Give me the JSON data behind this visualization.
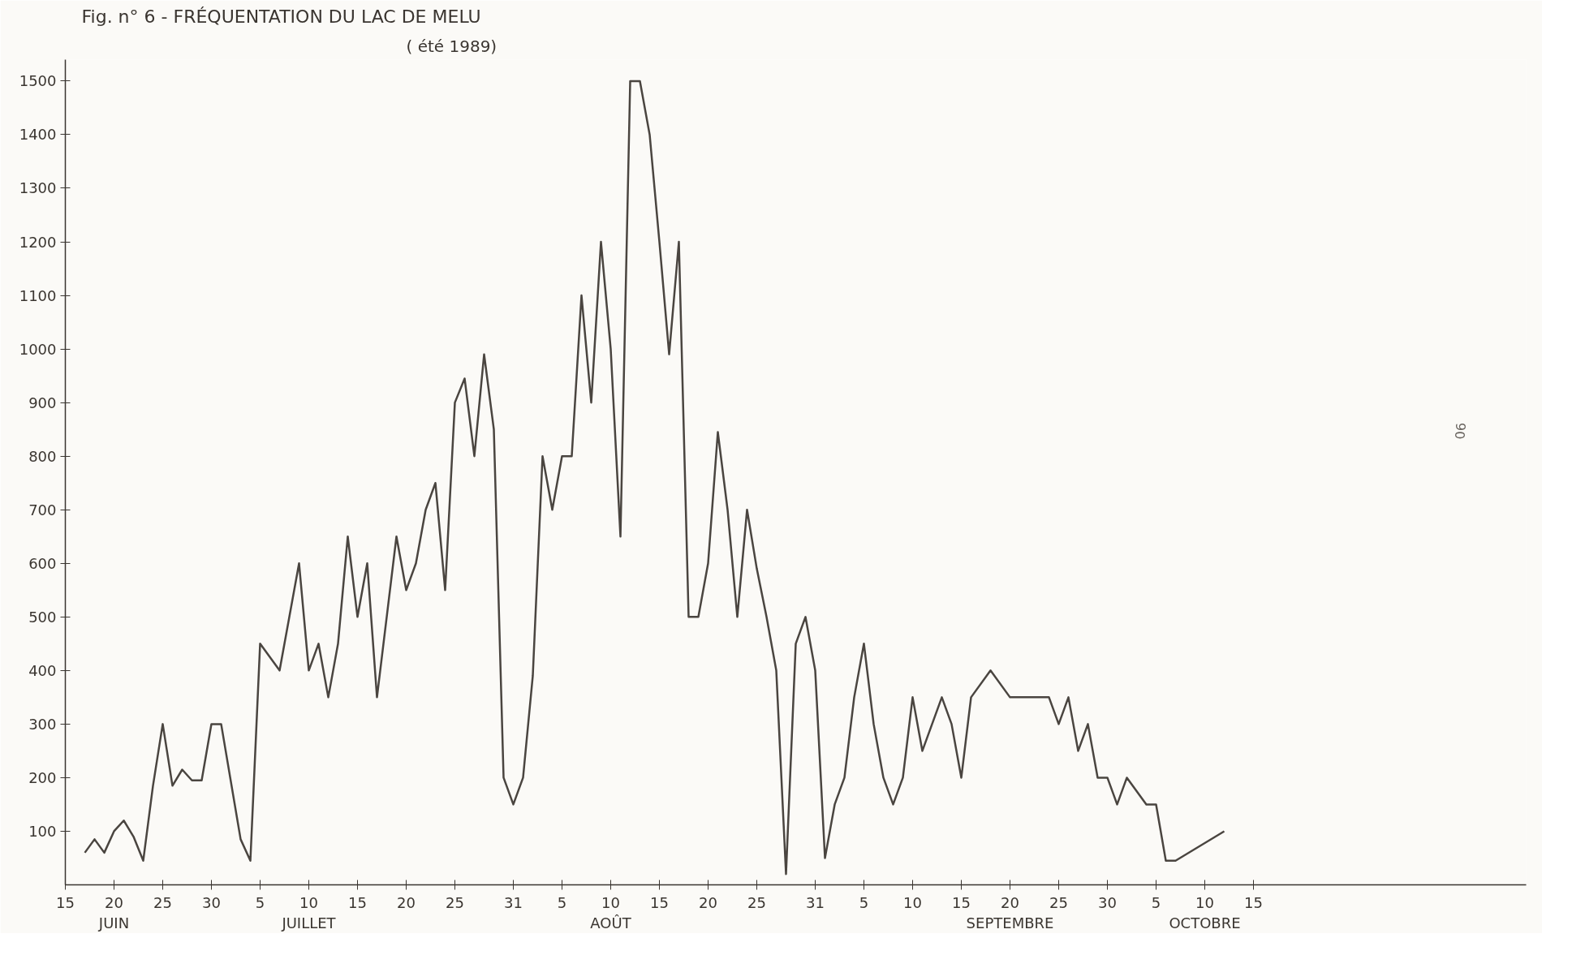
{
  "chart_data": {
    "type": "line",
    "title": "Fig. n° 6 - FRÉQUENTATION DU LAC DE MELU",
    "subtitle": "( été 1989)",
    "x": [
      "1989-06-17",
      "1989-06-18",
      "1989-06-19",
      "1989-06-20",
      "1989-06-21",
      "1989-06-22",
      "1989-06-23",
      "1989-06-24",
      "1989-06-25",
      "1989-06-26",
      "1989-06-27",
      "1989-06-28",
      "1989-06-29",
      "1989-06-30",
      "1989-07-01",
      "1989-07-03",
      "1989-07-04",
      "1989-07-05",
      "1989-07-07",
      "1989-07-08",
      "1989-07-09",
      "1989-07-10",
      "1989-07-11",
      "1989-07-12",
      "1989-07-13",
      "1989-07-14",
      "1989-07-15",
      "1989-07-16",
      "1989-07-17",
      "1989-07-18",
      "1989-07-19",
      "1989-07-20",
      "1989-07-21",
      "1989-07-22",
      "1989-07-23",
      "1989-07-24",
      "1989-07-25",
      "1989-07-26",
      "1989-07-27",
      "1989-07-28",
      "1989-07-29",
      "1989-07-30",
      "1989-07-31",
      "1989-08-01",
      "1989-08-02",
      "1989-08-03",
      "1989-08-04",
      "1989-08-05",
      "1989-08-06",
      "1989-08-07",
      "1989-08-08",
      "1989-08-09",
      "1989-08-10",
      "1989-08-11",
      "1989-08-12",
      "1989-08-13",
      "1989-08-14",
      "1989-08-15",
      "1989-08-16",
      "1989-08-17",
      "1989-08-18",
      "1989-08-19",
      "1989-08-20",
      "1989-08-21",
      "1989-08-22",
      "1989-08-23",
      "1989-08-24",
      "1989-08-25",
      "1989-08-26",
      "1989-08-27",
      "1989-08-28",
      "1989-08-29",
      "1989-08-30",
      "1989-08-31",
      "1989-09-01",
      "1989-09-02",
      "1989-09-03",
      "1989-09-04",
      "1989-09-05",
      "1989-09-06",
      "1989-09-07",
      "1989-09-08",
      "1989-09-09",
      "1989-09-10",
      "1989-09-11",
      "1989-09-13",
      "1989-09-14",
      "1989-09-15",
      "1989-09-16",
      "1989-09-18",
      "1989-09-20",
      "1989-09-24",
      "1989-09-25",
      "1989-09-26",
      "1989-09-27",
      "1989-09-28",
      "1989-09-29",
      "1989-09-30",
      "1989-10-01",
      "1989-10-02",
      "1989-10-04",
      "1989-10-05",
      "1989-10-06",
      "1989-10-07",
      "1989-10-12"
    ],
    "series": [
      {
        "color": "#4a4540",
        "values": [
          60,
          85,
          60,
          100,
          120,
          90,
          45,
          185,
          300,
          185,
          215,
          195,
          195,
          300,
          300,
          85,
          45,
          450,
          400,
          500,
          600,
          400,
          450,
          350,
          450,
          650,
          500,
          600,
          350,
          500,
          650,
          550,
          600,
          700,
          750,
          550,
          900,
          945,
          800,
          990,
          850,
          200,
          150,
          200,
          390,
          800,
          700,
          800,
          800,
          1100,
          900,
          1200,
          1000,
          650,
          1500,
          1500,
          1400,
          1200,
          990,
          1200,
          500,
          500,
          600,
          845,
          700,
          500,
          700,
          590,
          500,
          400,
          20,
          450,
          500,
          400,
          50,
          150,
          200,
          350,
          450,
          300,
          200,
          150,
          200,
          350,
          250,
          350,
          300,
          200,
          350,
          400,
          350,
          350,
          300,
          350,
          250,
          300,
          200,
          200,
          150,
          200,
          150,
          150,
          45,
          45,
          100
        ]
      }
    ],
    "xlim": [
      "1989-06-15",
      "1989-11-12"
    ],
    "xticks": [
      {
        "value": "1989-06-15",
        "label": "15"
      },
      {
        "value": "1989-06-20",
        "label": "20\nJUIN"
      },
      {
        "value": "1989-06-25",
        "label": "25"
      },
      {
        "value": "1989-06-30",
        "label": "30"
      },
      {
        "value": "1989-07-05",
        "label": "5"
      },
      {
        "value": "1989-07-10",
        "label": "10\nJUILLET"
      },
      {
        "value": "1989-07-15",
        "label": "15"
      },
      {
        "value": "1989-07-20",
        "label": "20"
      },
      {
        "value": "1989-07-25",
        "label": "25"
      },
      {
        "value": "1989-07-31",
        "label": "31"
      },
      {
        "value": "1989-08-05",
        "label": "5"
      },
      {
        "value": "1989-08-10",
        "label": "10\nAOÛT"
      },
      {
        "value": "1989-08-15",
        "label": "15"
      },
      {
        "value": "1989-08-20",
        "label": "20"
      },
      {
        "value": "1989-08-25",
        "label": "25"
      },
      {
        "value": "1989-08-31",
        "label": "31"
      },
      {
        "value": "1989-09-05",
        "label": "5"
      },
      {
        "value": "1989-09-10",
        "label": "10"
      },
      {
        "value": "1989-09-15",
        "label": "15"
      },
      {
        "value": "1989-09-20",
        "label": "20\nSEPTEMBRE"
      },
      {
        "value": "1989-09-25",
        "label": "25"
      },
      {
        "value": "1989-09-30",
        "label": "30"
      },
      {
        "value": "1989-10-05",
        "label": "5"
      },
      {
        "value": "1989-10-10",
        "label": "10\nOCTOBRE"
      },
      {
        "value": "1989-10-15",
        "label": "15"
      }
    ],
    "ylim": [
      0,
      1540
    ],
    "yticks": [
      100,
      200,
      300,
      400,
      500,
      600,
      700,
      800,
      900,
      1000,
      1100,
      1200,
      1300,
      1400,
      1500
    ],
    "grid": false,
    "marker": "none",
    "line_style": "solid",
    "annotations": [
      "90"
    ]
  }
}
